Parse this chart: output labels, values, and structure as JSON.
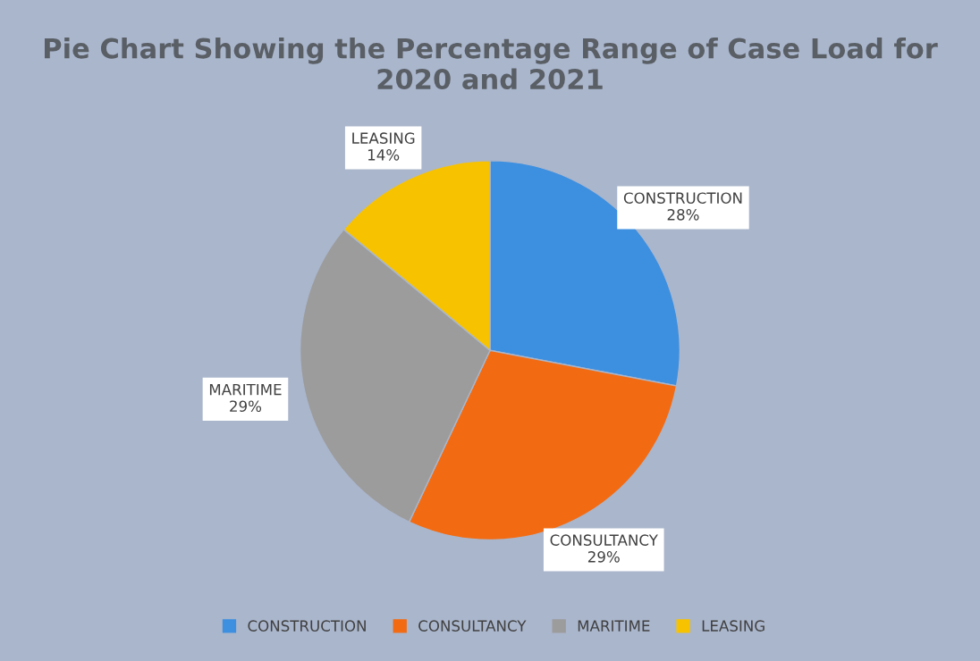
{
  "chart_data": {
    "type": "pie",
    "title": "Pie Chart Showing the Percentage Range of Case Load for 2020 and 2021",
    "categories": [
      "CONSTRUCTION",
      "CONSULTANCY",
      "MARITIME",
      "LEASING"
    ],
    "values": [
      28,
      29,
      29,
      14
    ],
    "value_labels": [
      "28%",
      "29%",
      "29%",
      "14%"
    ],
    "colors": [
      "#3d8fe0",
      "#f26b12",
      "#9c9c9c",
      "#f7c200"
    ],
    "legend": "bottom"
  }
}
